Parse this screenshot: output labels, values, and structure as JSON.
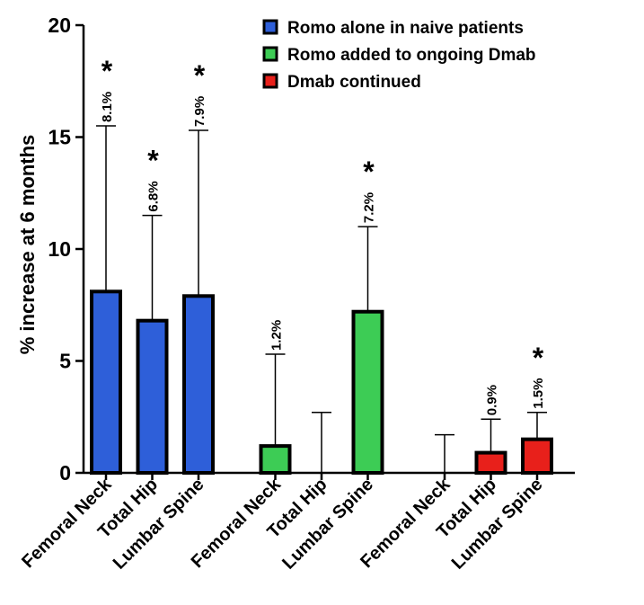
{
  "chart_data": {
    "type": "bar",
    "title": "",
    "ylabel": "% increase at 6 months",
    "xlabel": "",
    "ylim": [
      0,
      20
    ],
    "yticks": [
      0,
      5,
      10,
      15,
      20
    ],
    "grid": false,
    "legend_position": "top-right",
    "categories": [
      "Femoral Neck",
      "Total Hip",
      "Lumbar Spine"
    ],
    "groups": [
      {
        "name": "Romo alone in naive patients",
        "color": "#2e5fd9",
        "bars": [
          {
            "category": "Femoral Neck",
            "value": 8.1,
            "error_upper": 15.5,
            "label": "8.1%",
            "significant": true
          },
          {
            "category": "Total Hip",
            "value": 6.8,
            "error_upper": 11.5,
            "label": "6.8%",
            "significant": true
          },
          {
            "category": "Lumbar Spine",
            "value": 7.9,
            "error_upper": 15.3,
            "label": "7.9%",
            "significant": true
          }
        ]
      },
      {
        "name": "Romo added to ongoing Dmab",
        "color": "#3dcc55",
        "bars": [
          {
            "category": "Femoral Neck",
            "value": 1.2,
            "error_upper": 5.3,
            "label": "1.2%",
            "significant": false
          },
          {
            "category": "Total Hip",
            "value": 0,
            "error_upper": 2.7,
            "label": "",
            "significant": false
          },
          {
            "category": "Lumbar Spine",
            "value": 7.2,
            "error_upper": 11.0,
            "label": "7.2%",
            "significant": true
          }
        ]
      },
      {
        "name": "Dmab continued",
        "color": "#e8201b",
        "bars": [
          {
            "category": "Femoral Neck",
            "value": 0,
            "error_upper": 1.7,
            "label": "",
            "significant": false
          },
          {
            "category": "Total Hip",
            "value": 0.9,
            "error_upper": 2.4,
            "label": "0.9%",
            "significant": false
          },
          {
            "category": "Lumbar Spine",
            "value": 1.5,
            "error_upper": 2.7,
            "label": "1.5%",
            "significant": true
          }
        ]
      }
    ],
    "significance_marker": "*"
  }
}
